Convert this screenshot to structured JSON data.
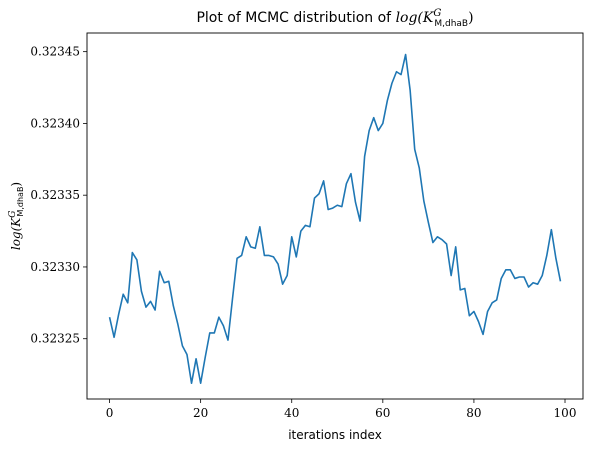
{
  "chart_data": {
    "type": "line",
    "title_prefix": "Plot of MCMC distribution of ",
    "title_math": "log(K",
    "title_sup": "G",
    "title_sub": "M,dhaB",
    "title_close": ")",
    "xlabel": "iterations index",
    "ylabel_math": "log(K",
    "ylabel_sup": "G",
    "ylabel_sub": "M,dhaB",
    "ylabel_close": ")",
    "xlim": [
      -4.95,
      103.95
    ],
    "ylim": [
      0.323208,
      0.323463
    ],
    "x_ticks": [
      0,
      20,
      40,
      60,
      80,
      100
    ],
    "y_ticks": [
      0.32325,
      0.3233,
      0.32335,
      0.3234,
      0.32345
    ],
    "y_tick_labels": [
      "0.32325",
      "0.32330",
      "0.32335",
      "0.32340",
      "0.32345"
    ],
    "line_color": "#1f77b4",
    "grid": false,
    "x": [
      0,
      1,
      2,
      3,
      4,
      5,
      6,
      7,
      8,
      9,
      10,
      11,
      12,
      13,
      14,
      15,
      16,
      17,
      18,
      19,
      20,
      21,
      22,
      23,
      24,
      25,
      26,
      27,
      28,
      29,
      30,
      31,
      32,
      33,
      34,
      35,
      36,
      37,
      38,
      39,
      40,
      41,
      42,
      43,
      44,
      45,
      46,
      47,
      48,
      49,
      50,
      51,
      52,
      53,
      54,
      55,
      56,
      57,
      58,
      59,
      60,
      61,
      62,
      63,
      64,
      65,
      66,
      67,
      68,
      69,
      70,
      71,
      72,
      73,
      74,
      75,
      76,
      77,
      78,
      79,
      80,
      81,
      82,
      83,
      84,
      85,
      86,
      87,
      88,
      89,
      90,
      91,
      92,
      93,
      94,
      95,
      96,
      97,
      98,
      99
    ],
    "values": [
      0.323265,
      0.323251,
      0.323267,
      0.323281,
      0.323275,
      0.32331,
      0.323305,
      0.323283,
      0.323272,
      0.323276,
      0.32327,
      0.323297,
      0.323289,
      0.32329,
      0.323273,
      0.32326,
      0.323245,
      0.323239,
      0.323219,
      0.323236,
      0.323219,
      0.323237,
      0.323254,
      0.323254,
      0.323265,
      0.323259,
      0.323249,
      0.323278,
      0.323306,
      0.323308,
      0.323321,
      0.323314,
      0.323313,
      0.323328,
      0.323308,
      0.323308,
      0.323307,
      0.323302,
      0.323288,
      0.323294,
      0.323321,
      0.323307,
      0.323325,
      0.323329,
      0.323328,
      0.323348,
      0.323351,
      0.32336,
      0.32334,
      0.323341,
      0.323343,
      0.323342,
      0.323358,
      0.323365,
      0.323345,
      0.323332,
      0.323377,
      0.323395,
      0.323404,
      0.323395,
      0.3234,
      0.323416,
      0.323428,
      0.323436,
      0.323434,
      0.323448,
      0.323423,
      0.323382,
      0.323369,
      0.323346,
      0.323331,
      0.323317,
      0.323321,
      0.323319,
      0.323316,
      0.323294,
      0.323314,
      0.323284,
      0.323285,
      0.323266,
      0.323269,
      0.323262,
      0.323253,
      0.323269,
      0.323275,
      0.323277,
      0.323292,
      0.323298,
      0.323298,
      0.323292,
      0.323293,
      0.323293,
      0.323286,
      0.323289,
      0.323288,
      0.323294,
      0.323308,
      0.323326,
      0.323306,
      0.32329
    ]
  }
}
